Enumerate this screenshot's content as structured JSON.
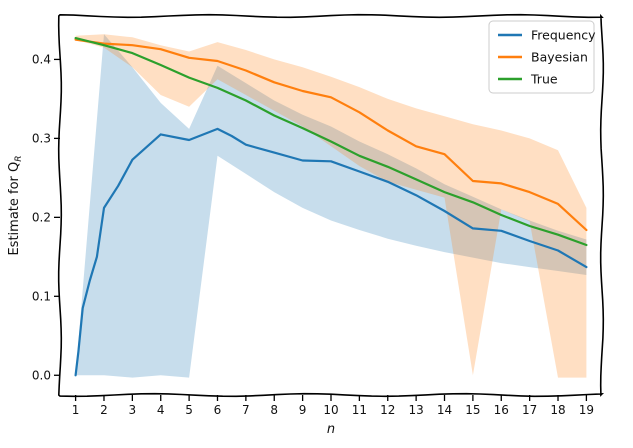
{
  "chart_data": {
    "type": "line",
    "title": "",
    "xlabel": "n",
    "ylabel": "Estimate for Q",
    "ylabel_subscript": "R",
    "x": [
      1,
      1.1,
      1.25,
      1.5,
      1.75,
      2,
      2.5,
      3,
      4,
      5,
      6,
      7,
      8,
      9,
      10,
      11,
      12,
      13,
      14,
      15,
      16,
      17,
      18,
      19
    ],
    "xticks": [
      1,
      2,
      3,
      4,
      5,
      6,
      7,
      8,
      9,
      10,
      11,
      12,
      13,
      14,
      15,
      16,
      17,
      18,
      19
    ],
    "yticks": [
      0.0,
      0.1,
      0.2,
      0.3,
      0.4
    ],
    "ytick_labels": [
      "0.0",
      "0.1",
      "0.2",
      "0.3",
      "0.4"
    ],
    "xlim": [
      0.45,
      19.55
    ],
    "ylim": [
      -0.025,
      0.455
    ],
    "grid": false,
    "legend_position": "top-right",
    "series": [
      {
        "name": "Frequency",
        "color": "#1f77b4",
        "x": [
          1,
          1.1,
          1.25,
          1.5,
          1.75,
          2,
          2.5,
          3,
          4,
          5,
          6,
          6.5,
          7,
          8,
          9,
          10,
          11,
          12,
          13,
          14,
          15,
          16,
          17,
          18,
          19
        ],
        "values": [
          0.0,
          0.03,
          0.085,
          0.12,
          0.15,
          0.212,
          0.24,
          0.273,
          0.305,
          0.298,
          0.312,
          0.303,
          0.292,
          0.282,
          0.272,
          0.271,
          0.258,
          0.245,
          0.228,
          0.208,
          0.186,
          0.183,
          0.17,
          0.158,
          0.137
        ],
        "band_x": [
          1,
          2,
          3,
          4,
          5,
          6,
          7,
          8,
          9,
          10,
          11,
          12,
          13,
          14,
          15,
          16,
          17,
          18,
          19
        ],
        "band_lower": [
          0.0,
          0.0,
          -0.003,
          0.0,
          -0.003,
          0.278,
          0.255,
          0.232,
          0.212,
          0.196,
          0.184,
          0.173,
          0.164,
          0.156,
          0.149,
          0.142,
          0.137,
          0.132,
          0.127
        ],
        "band_upper": [
          0.0,
          0.432,
          0.39,
          0.345,
          0.312,
          0.392,
          0.37,
          0.348,
          0.33,
          0.315,
          0.296,
          0.28,
          0.262,
          0.242,
          0.226,
          0.21,
          0.196,
          0.183,
          0.172
        ]
      },
      {
        "name": "Bayesian",
        "color": "#ff7f0e",
        "x": [
          1,
          2,
          3,
          4,
          5,
          6,
          7,
          8,
          9,
          10,
          11,
          12,
          13,
          14,
          15,
          16,
          17,
          18,
          19
        ],
        "values": [
          0.425,
          0.42,
          0.418,
          0.413,
          0.402,
          0.398,
          0.386,
          0.371,
          0.36,
          0.352,
          0.333,
          0.31,
          0.29,
          0.28,
          0.246,
          0.243,
          0.232,
          0.217,
          0.184
        ],
        "band_x": [
          1,
          2,
          3,
          4,
          5,
          6,
          7,
          8,
          9,
          10,
          11,
          12,
          13,
          14,
          15,
          16,
          17,
          18,
          19
        ],
        "band_lower": [
          0.425,
          0.415,
          0.39,
          0.355,
          0.34,
          0.375,
          0.355,
          0.335,
          0.315,
          0.29,
          0.265,
          0.245,
          0.235,
          0.225,
          0.0,
          0.21,
          0.195,
          -0.003,
          -0.003
        ],
        "band_upper": [
          0.43,
          0.432,
          0.428,
          0.418,
          0.41,
          0.422,
          0.412,
          0.4,
          0.39,
          0.378,
          0.365,
          0.35,
          0.338,
          0.328,
          0.318,
          0.31,
          0.3,
          0.285,
          0.212
        ]
      },
      {
        "name": "True",
        "color": "#2ca02c",
        "x": [
          1,
          2,
          3,
          4,
          5,
          6,
          7,
          8,
          9,
          10,
          11,
          12,
          13,
          14,
          15,
          16,
          17,
          18,
          19
        ],
        "values": [
          0.427,
          0.418,
          0.408,
          0.393,
          0.377,
          0.364,
          0.348,
          0.329,
          0.313,
          0.296,
          0.278,
          0.264,
          0.248,
          0.232,
          0.219,
          0.203,
          0.189,
          0.178,
          0.165
        ]
      }
    ]
  }
}
